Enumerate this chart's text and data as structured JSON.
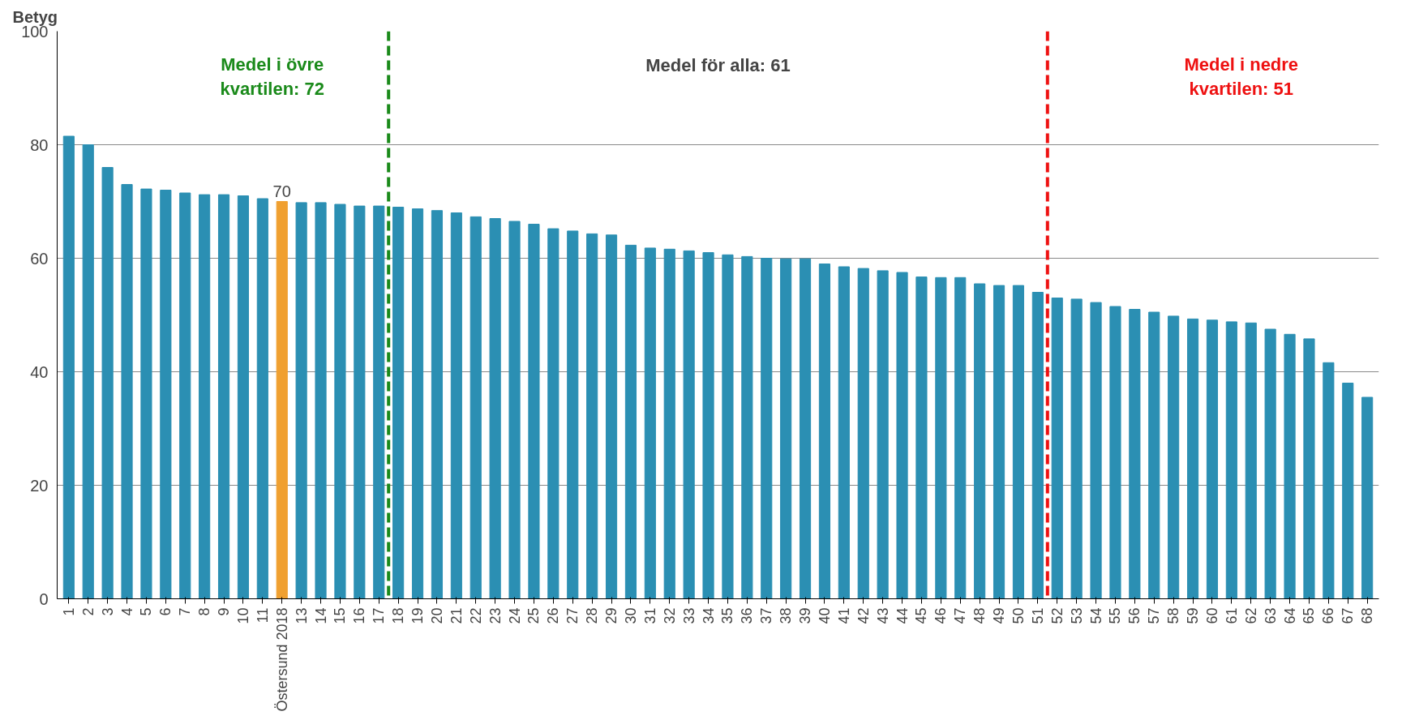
{
  "chart_data": {
    "type": "bar",
    "ylabel": "Betyg",
    "categories": [
      "1",
      "2",
      "3",
      "4",
      "5",
      "6",
      "7",
      "8",
      "9",
      "10",
      "11",
      "Östersund 2018",
      "13",
      "14",
      "15",
      "16",
      "17",
      "18",
      "19",
      "20",
      "21",
      "22",
      "23",
      "24",
      "25",
      "26",
      "27",
      "28",
      "29",
      "30",
      "31",
      "32",
      "33",
      "34",
      "35",
      "36",
      "37",
      "38",
      "39",
      "40",
      "41",
      "42",
      "43",
      "44",
      "45",
      "46",
      "47",
      "48",
      "49",
      "50",
      "51",
      "52",
      "53",
      "54",
      "55",
      "56",
      "57",
      "58",
      "59",
      "60",
      "61",
      "62",
      "63",
      "64",
      "65",
      "66",
      "67",
      "68"
    ],
    "values": [
      81.5,
      80,
      76,
      73,
      72.2,
      72,
      71.5,
      71.2,
      71.2,
      71,
      70.5,
      70,
      69.8,
      69.8,
      69.5,
      69.2,
      69.2,
      69,
      68.7,
      68.4,
      68,
      67.3,
      67,
      66.5,
      66,
      65.2,
      64.8,
      64.3,
      64.1,
      62.3,
      61.8,
      61.6,
      61.3,
      61,
      60.6,
      60.3,
      60,
      59.9,
      59.9,
      59,
      58.5,
      58.2,
      57.8,
      57.5,
      56.7,
      56.6,
      56.6,
      55.5,
      55.2,
      55.2,
      54,
      53,
      52.8,
      52.2,
      51.5,
      51,
      50.5,
      49.8,
      49.3,
      49.1,
      48.8,
      48.6,
      47.5,
      46.6,
      45.8,
      41.6,
      38,
      35.5
    ],
    "colors": [
      "#2b8fb3",
      "#2b8fb3",
      "#2b8fb3",
      "#2b8fb3",
      "#2b8fb3",
      "#2b8fb3",
      "#2b8fb3",
      "#2b8fb3",
      "#2b8fb3",
      "#2b8fb3",
      "#2b8fb3",
      "#f0a030",
      "#2b8fb3",
      "#2b8fb3",
      "#2b8fb3",
      "#2b8fb3",
      "#2b8fb3",
      "#2b8fb3",
      "#2b8fb3",
      "#2b8fb3",
      "#2b8fb3",
      "#2b8fb3",
      "#2b8fb3",
      "#2b8fb3",
      "#2b8fb3",
      "#2b8fb3",
      "#2b8fb3",
      "#2b8fb3",
      "#2b8fb3",
      "#2b8fb3",
      "#2b8fb3",
      "#2b8fb3",
      "#2b8fb3",
      "#2b8fb3",
      "#2b8fb3",
      "#2b8fb3",
      "#2b8fb3",
      "#2b8fb3",
      "#2b8fb3",
      "#2b8fb3",
      "#2b8fb3",
      "#2b8fb3",
      "#2b8fb3",
      "#2b8fb3",
      "#2b8fb3",
      "#2b8fb3",
      "#2b8fb3",
      "#2b8fb3",
      "#2b8fb3",
      "#2b8fb3",
      "#2b8fb3",
      "#2b8fb3",
      "#2b8fb3",
      "#2b8fb3",
      "#2b8fb3",
      "#2b8fb3",
      "#2b8fb3",
      "#2b8fb3",
      "#2b8fb3",
      "#2b8fb3",
      "#2b8fb3",
      "#2b8fb3",
      "#2b8fb3",
      "#2b8fb3",
      "#2b8fb3",
      "#2b8fb3",
      "#2b8fb3",
      "#2b8fb3"
    ],
    "value_labels": [
      null,
      null,
      null,
      null,
      null,
      null,
      null,
      null,
      null,
      null,
      null,
      "70",
      null,
      null,
      null,
      null,
      null,
      null,
      null,
      null,
      null,
      null,
      null,
      null,
      null,
      null,
      null,
      null,
      null,
      null,
      null,
      null,
      null,
      null,
      null,
      null,
      null,
      null,
      null,
      null,
      null,
      null,
      null,
      null,
      null,
      null,
      null,
      null,
      null,
      null,
      null,
      null,
      null,
      null,
      null,
      null,
      null,
      null,
      null,
      null,
      null,
      null,
      null,
      null,
      null,
      null,
      null,
      null
    ],
    "ylim": [
      0,
      100
    ],
    "yticks": [
      0,
      20,
      40,
      60,
      80,
      100
    ],
    "grid": "y",
    "ref_lines": [
      {
        "axis": "x",
        "value": "18",
        "label": "Medel i övre kvartilen: 72",
        "color": "#1a8a1a",
        "line_style": "dashed"
      },
      {
        "axis": "x",
        "value": "52",
        "label": "Medel i nedre kvartilen: 51",
        "color": "#ee1111",
        "line_style": "dashed"
      }
    ],
    "annotations": [
      "Medel för alla: 61"
    ]
  }
}
